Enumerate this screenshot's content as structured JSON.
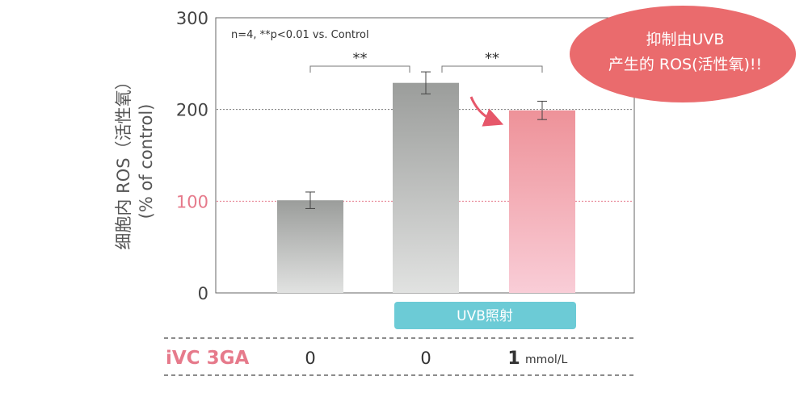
{
  "chart_data": {
    "type": "bar",
    "title": "",
    "ylabel_lines": [
      "细胞内 ROS（活性氧）",
      "(% of control)"
    ],
    "ylim": [
      0,
      300
    ],
    "yticks": [
      "0",
      "100",
      "200",
      "300"
    ],
    "grid": false,
    "reference_lines": [
      100,
      200
    ],
    "annotation": "n=4, **p<0.01 vs. Control",
    "significance_marks": [
      {
        "from_index": 0,
        "to_index": 1,
        "label": "**"
      },
      {
        "from_index": 1,
        "to_index": 2,
        "label": "**"
      }
    ],
    "categories": [
      "0",
      "0",
      "1"
    ],
    "values": [
      101,
      229,
      199
    ],
    "errors": [
      9,
      12,
      10
    ],
    "colors": {
      "gray_top": "#9b9d9b",
      "gray_bottom": "#e1e2e1",
      "pink_top": "#ee9299",
      "pink_bottom": "#f9cdd7"
    }
  },
  "treatment_label": "UVB照射",
  "ivc_label": "iVC 3GA",
  "doses": [
    "0",
    "0",
    "1"
  ],
  "dose_unit": "mmol/L",
  "callout": {
    "line1": "抑制由UVB",
    "line2": "产生的 ROS(活性氧)!!"
  },
  "colors": {
    "accent_pink": "#e67a8b",
    "teal": "#6ccbd6",
    "callout": "#ea6b6d"
  }
}
